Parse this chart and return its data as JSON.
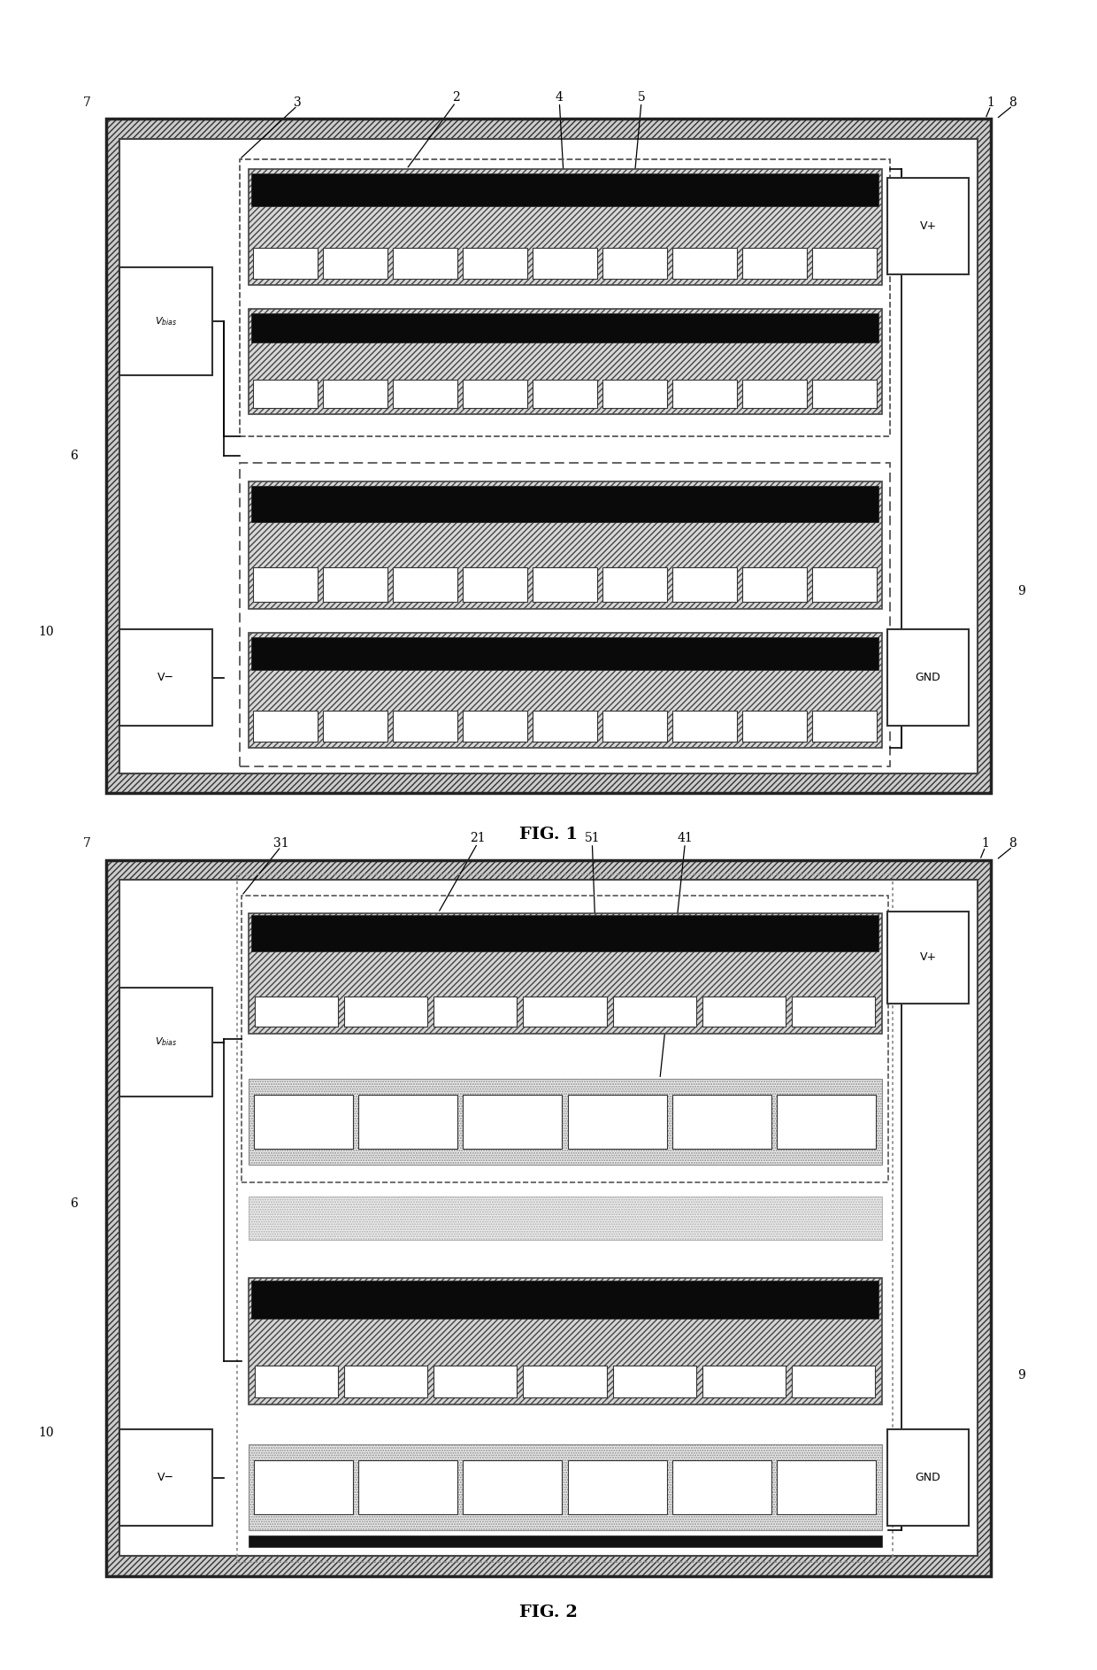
{
  "fig_width": 12.4,
  "fig_height": 18.87,
  "bg": "#f5f5f5",
  "fig1": {
    "title": "FIG. 1",
    "outer": [
      0.08,
      0.525,
      0.84,
      0.405
    ],
    "chip_bg": "#e8e8e8"
  },
  "fig2": {
    "title": "FIG. 2",
    "outer": [
      0.08,
      0.055,
      0.84,
      0.43
    ]
  }
}
